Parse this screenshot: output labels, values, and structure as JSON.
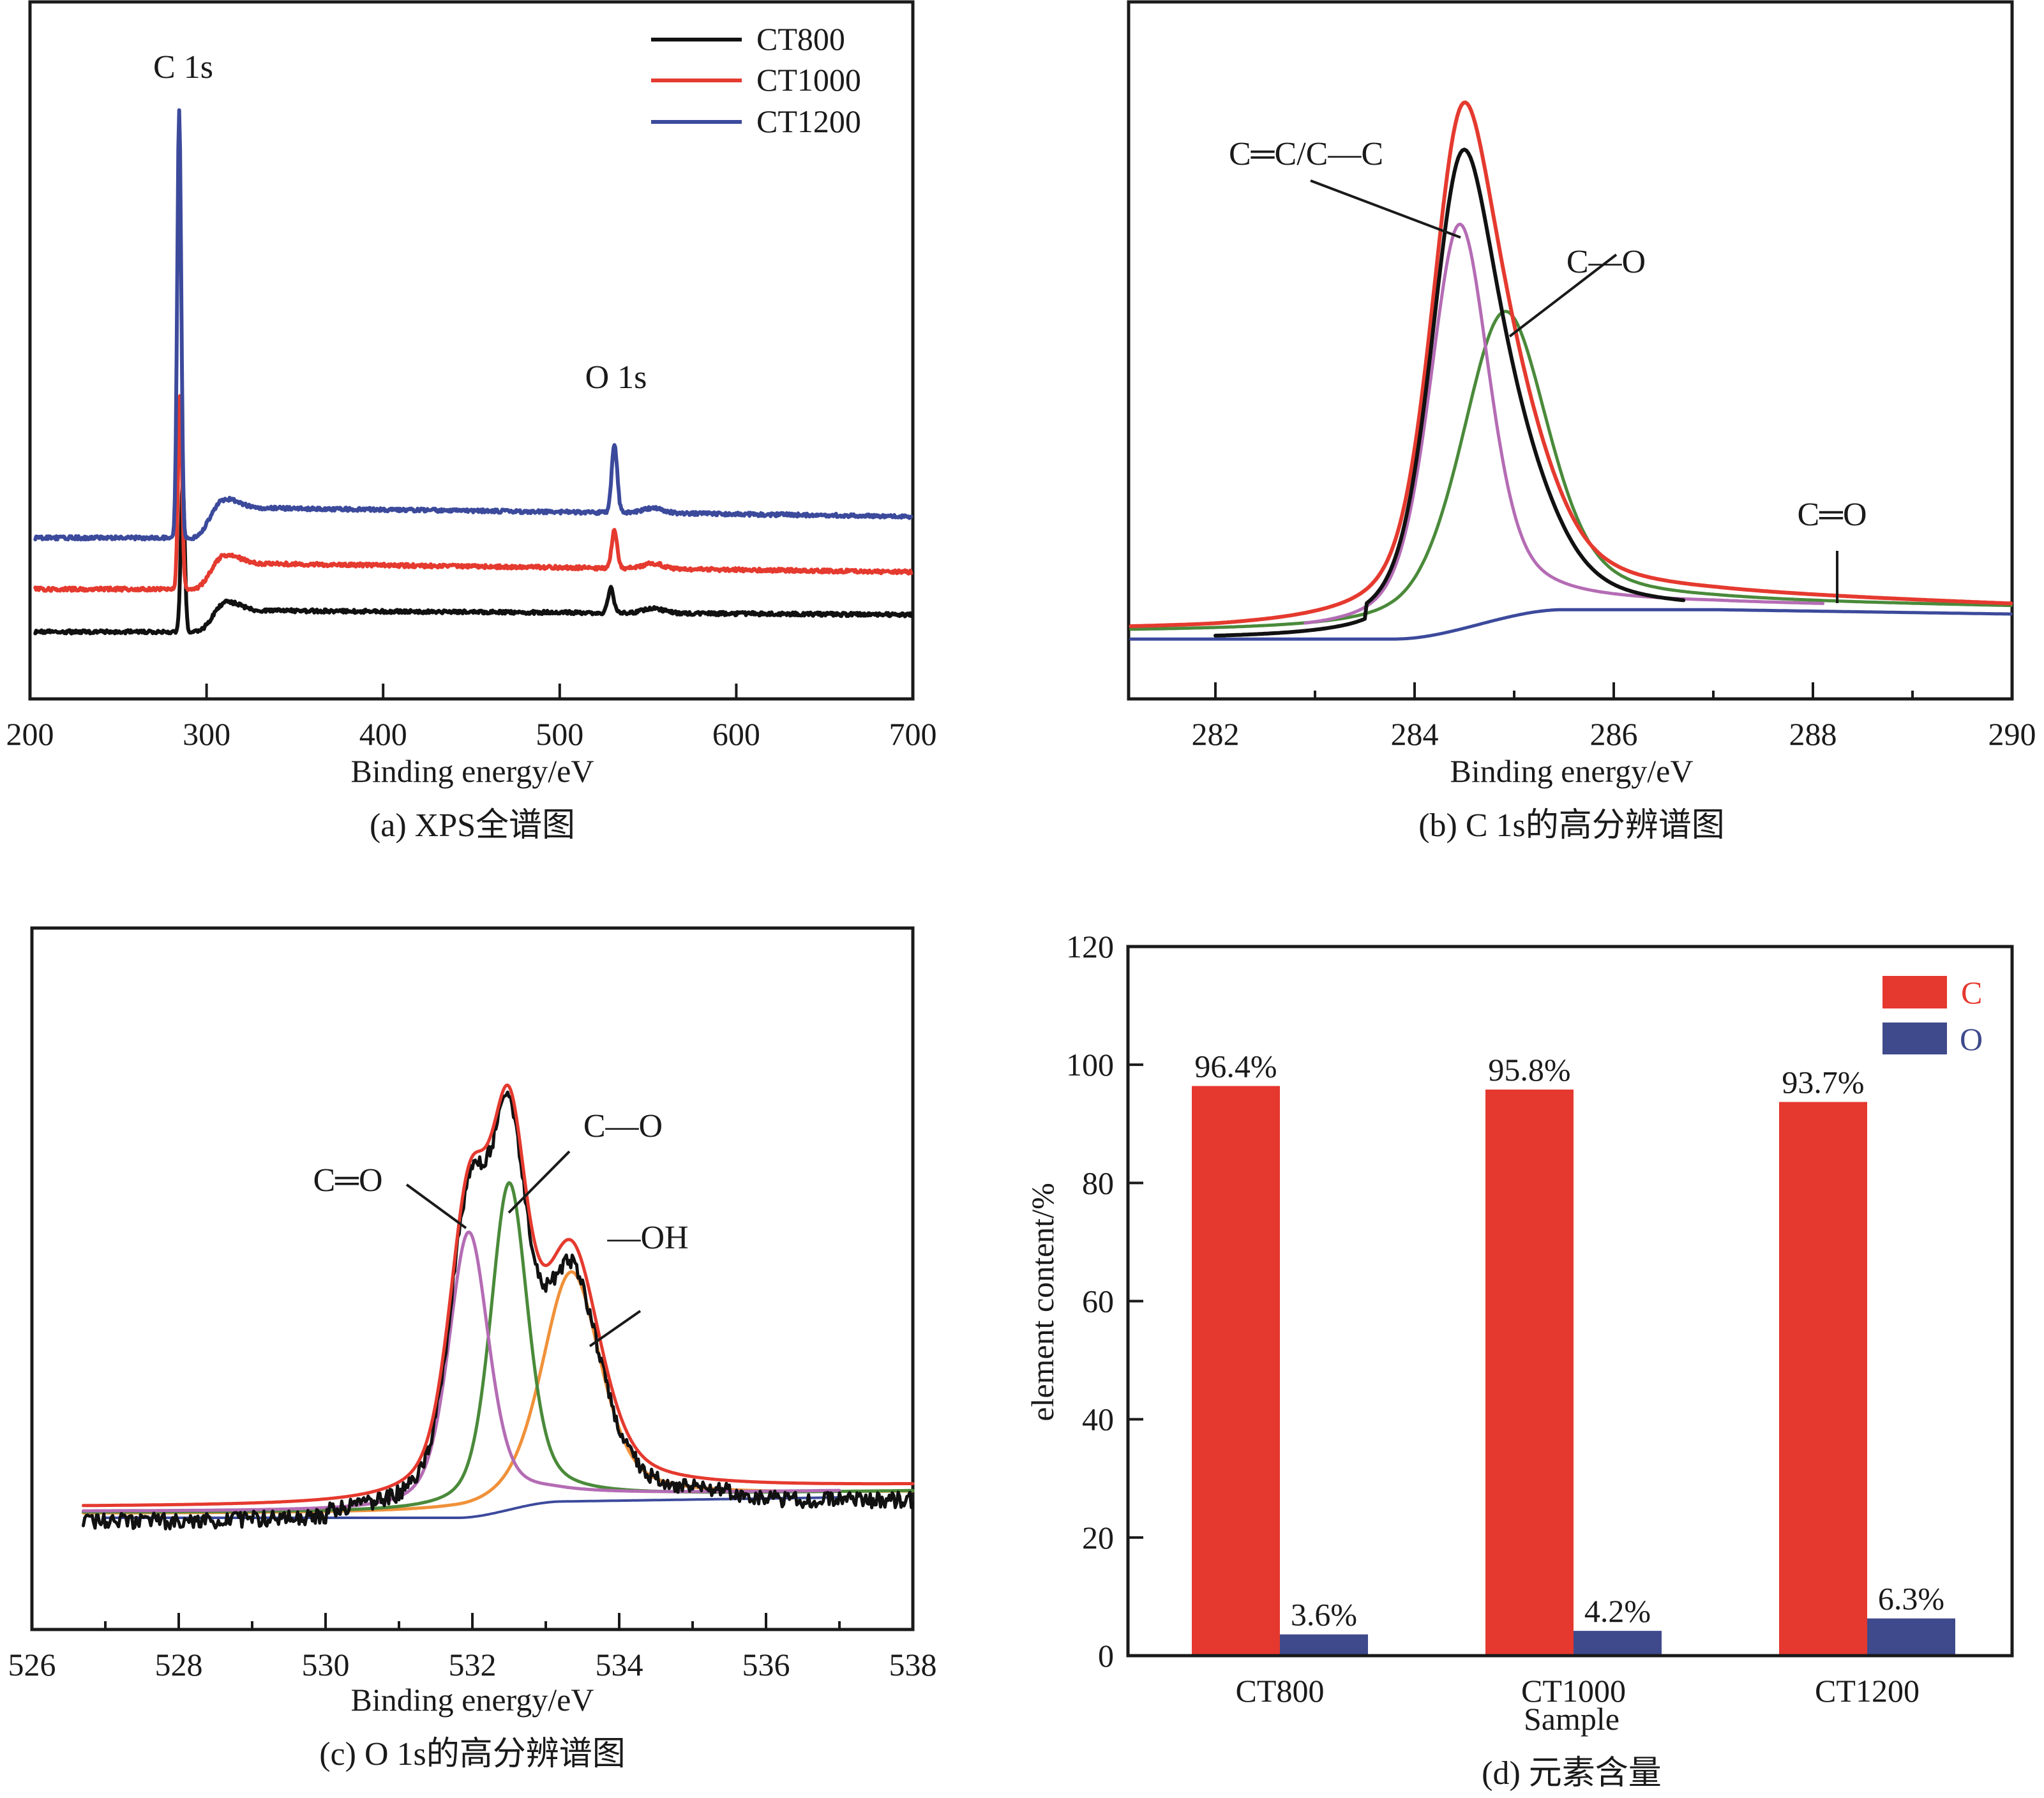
{
  "chart_data": [
    {
      "id": "a",
      "type": "line",
      "caption": "(a) XPS全谱图",
      "xlabel": "Binding energy/eV",
      "ylabel": "",
      "xlim": [
        200,
        700
      ],
      "xticks": [
        200,
        300,
        400,
        500,
        600,
        700
      ],
      "yticks": [],
      "grid": false,
      "legend": {
        "placement": "top-right",
        "entries": [
          "CT800",
          "CT1000",
          "CT1200"
        ]
      },
      "annotations": [
        {
          "text": "C 1s",
          "x": 285
        },
        {
          "text": "O 1s",
          "x": 531
        }
      ],
      "series": [
        {
          "name": "CT800",
          "color": "#111111",
          "baseline": 0.0,
          "c1s_peak_x": 286.5,
          "c1s_peak_height": 0.35,
          "o1s_peak_x": 529,
          "o1s_peak_height": 0.06,
          "plateau": 0.05,
          "end_level": 0.04
        },
        {
          "name": "CT1000",
          "color": "#e53a2f",
          "baseline": 0.1,
          "c1s_peak_x": 285,
          "c1s_peak_height": 0.45,
          "o1s_peak_x": 531,
          "o1s_peak_height": 0.09,
          "plateau": 0.16,
          "end_level": 0.14
        },
        {
          "name": "CT1200",
          "color": "#3c4a9c",
          "baseline": 0.22,
          "c1s_peak_x": 284.5,
          "c1s_peak_height": 1.0,
          "o1s_peak_x": 531,
          "o1s_peak_height": 0.16,
          "plateau": 0.29,
          "end_level": 0.27
        }
      ]
    },
    {
      "id": "b",
      "type": "line",
      "caption": "(b) C 1s的高分辨谱图",
      "xlabel": "Binding energy/eV",
      "ylabel": "",
      "xlim": [
        281.15,
        290
      ],
      "xticks": [
        282,
        284,
        286,
        288,
        290
      ],
      "minor_xticks": [
        283,
        285,
        287,
        289
      ],
      "grid": false,
      "annotations": [
        {
          "text": "C═C/C—C",
          "points_to": "C=C/C-C component peak",
          "x": 284.45
        },
        {
          "text": "C—O",
          "points_to": "C-O component peak",
          "x": 284.9
        },
        {
          "text": "C═O",
          "points_to": "C=O component",
          "x": 288.1
        }
      ],
      "series": [
        {
          "name": "raw",
          "color": "#111111",
          "x_range": [
            282.0,
            286.7
          ],
          "peak_x": 284.55,
          "peak_height": 0.96
        },
        {
          "name": "envelope",
          "color": "#e53a2f",
          "x_range": [
            281.15,
            290
          ],
          "peak_x": 284.55,
          "peak_height": 1.0
        },
        {
          "name": "C=C/C-C",
          "color": "#b46cb4",
          "x_range": [
            282.9,
            288.1
          ],
          "peak_x": 284.45,
          "peak_height": 0.68
        },
        {
          "name": "C-O",
          "color": "#4a8a3a",
          "x_range": [
            281.15,
            290
          ],
          "peak_x": 284.9,
          "peak_height": 0.51
        },
        {
          "name": "background",
          "color": "#3c4a9c",
          "x_range": [
            281.15,
            290
          ],
          "step_from": 283.8,
          "step_to": 285.5,
          "step_height": 0.05
        }
      ]
    },
    {
      "id": "c",
      "type": "line",
      "caption": "(c) O 1s的高分辨谱图",
      "xlabel": "Binding energy/eV",
      "ylabel": "",
      "xlim": [
        526,
        538
      ],
      "xticks": [
        526,
        528,
        530,
        532,
        534,
        536,
        538
      ],
      "minor_xticks": [
        527,
        529,
        531,
        533,
        535,
        537
      ],
      "grid": false,
      "annotations": [
        {
          "text": "C═O",
          "points_to": "C=O component peak",
          "x": 531.95
        },
        {
          "text": "C—O",
          "points_to": "C-O component peak",
          "x": 532.5
        },
        {
          "text": "—OH",
          "points_to": "-OH component peak",
          "x": 533.35
        }
      ],
      "series": [
        {
          "name": "raw",
          "color": "#111111",
          "x_range": [
            526.7,
            538
          ],
          "peak_x": 532.35,
          "peak_height": 1.0
        },
        {
          "name": "envelope",
          "color": "#e53a2f",
          "x_range": [
            526.7,
            538
          ],
          "peak_x": 532.4,
          "peak_height": 0.99
        },
        {
          "name": "C=O",
          "color": "#b46cb4",
          "x_range": [
            526.7,
            537
          ],
          "peak_x": 531.95,
          "peak_height": 0.52
        },
        {
          "name": "C-O",
          "color": "#4a8a3a",
          "x_range": [
            526.7,
            538
          ],
          "peak_x": 532.5,
          "peak_height": 0.6
        },
        {
          "name": "-OH",
          "color": "#f0913a",
          "x_range": [
            526.7,
            538
          ],
          "peak_x": 533.35,
          "peak_height": 0.42
        },
        {
          "name": "background",
          "color": "#3c4a9c",
          "x_range": [
            527,
            537.1
          ],
          "step_from": 531.8,
          "step_to": 533.2,
          "step_height": 0.03
        }
      ]
    },
    {
      "id": "d",
      "type": "bar",
      "caption": "(d) 元素含量",
      "xlabel": "Sample",
      "ylabel": "element content/%",
      "ylim": [
        0,
        120
      ],
      "yticks": [
        0,
        20,
        40,
        60,
        80,
        100,
        120
      ],
      "grid": false,
      "categories": [
        "CT800",
        "CT1000",
        "CT1200"
      ],
      "legend": {
        "placement": "top-right",
        "entries": [
          "C",
          "O"
        ]
      },
      "series": [
        {
          "name": "C",
          "color": "#e5382f",
          "values": [
            96.4,
            95.8,
            93.7
          ],
          "labels": [
            "96.4%",
            "95.8%",
            "93.7%"
          ]
        },
        {
          "name": "O",
          "color": "#3f4a8c",
          "values": [
            3.6,
            4.2,
            6.3
          ],
          "labels": [
            "3.6%",
            "4.2%",
            "6.3%"
          ]
        }
      ]
    }
  ]
}
